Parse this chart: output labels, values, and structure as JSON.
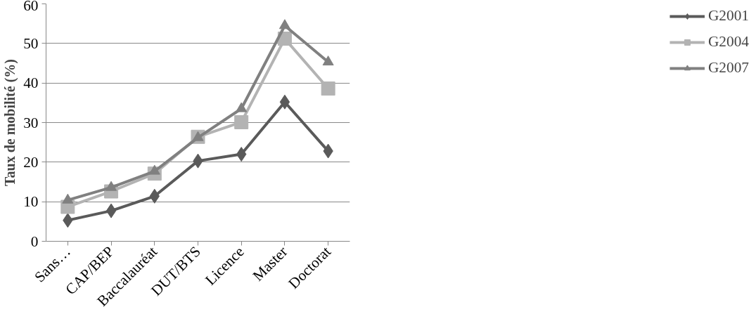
{
  "chart_data": {
    "type": "line",
    "ylabel": "Taux de mobilité (%)",
    "categories": [
      "Sans…",
      "CAP/BEP",
      "Baccalauréat",
      "DUT/BTS",
      "Licence",
      "Master",
      "Doctorat"
    ],
    "series": [
      {
        "name": "G2001",
        "color": "#5a5a5a",
        "marker": "diamond",
        "values": [
          5.3,
          7.7,
          11.4,
          20.3,
          22.0,
          35.2,
          22.8
        ]
      },
      {
        "name": "G2004",
        "color": "#b3b3b3",
        "marker": "square",
        "values": [
          8.7,
          12.6,
          17.1,
          26.4,
          30.1,
          51.2,
          38.6
        ]
      },
      {
        "name": "G2007",
        "color": "#808080",
        "marker": "triangle",
        "values": [
          10.4,
          13.6,
          17.7,
          26.2,
          33.5,
          54.5,
          45.3
        ]
      }
    ],
    "ylim": [
      0,
      60
    ],
    "yticks": [
      0,
      10,
      20,
      30,
      40,
      50,
      60
    ],
    "grid": "y",
    "legend": "right",
    "line_style": "solid"
  }
}
